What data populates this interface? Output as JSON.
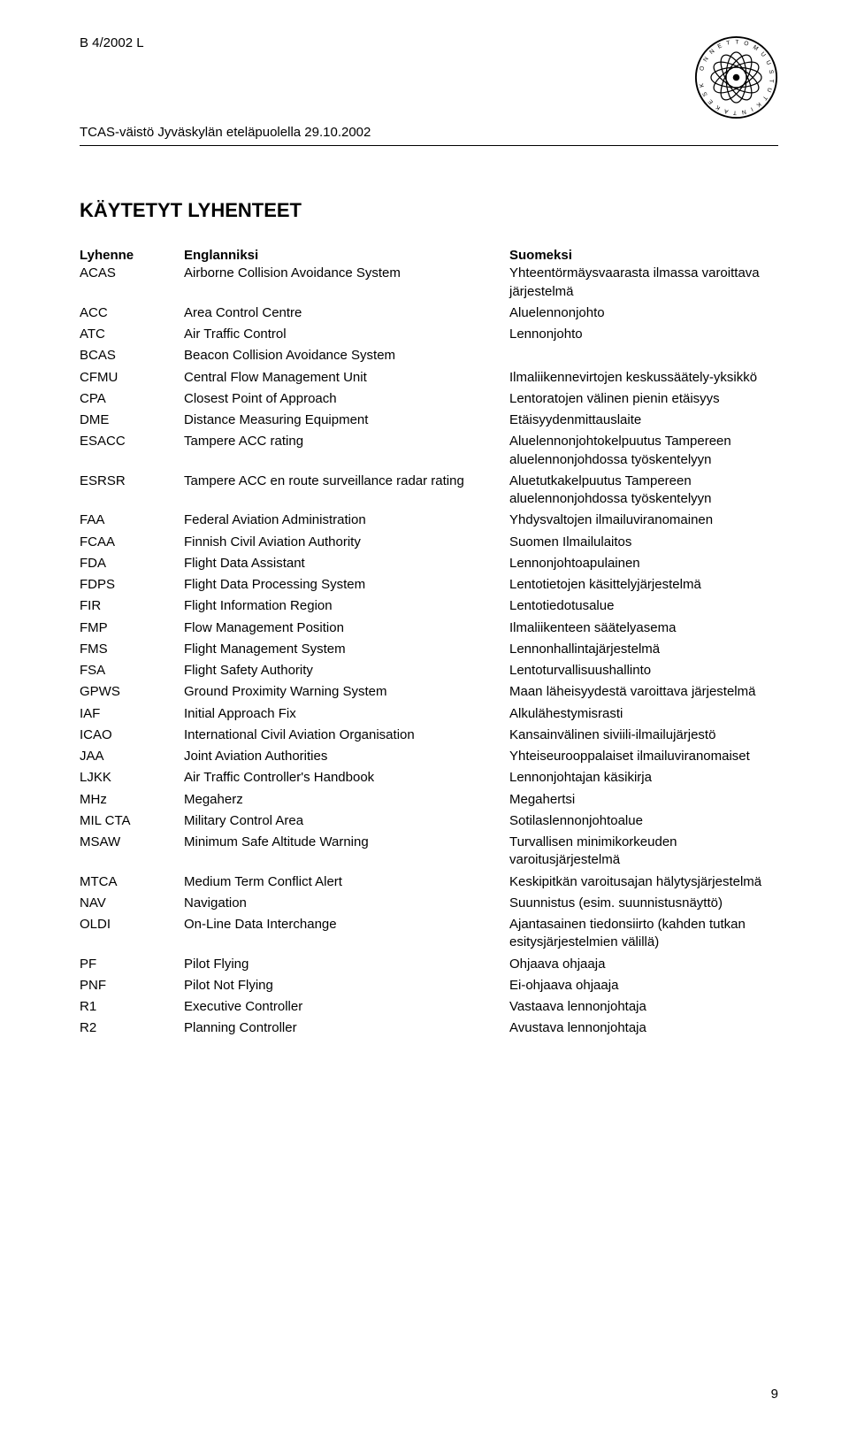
{
  "header": {
    "doc_id": "B 4/2002 L",
    "subtitle": "TCAS-väistö Jyväskylän eteläpuolella 29.10.2002"
  },
  "section_title": "KÄYTETYT LYHENTEET",
  "columns": {
    "abbr": "Lyhenne",
    "eng": "Englanniksi",
    "fin": "Suomeksi"
  },
  "rows": [
    {
      "a": "ACAS",
      "e": "Airborne Collision Avoidance System",
      "f": "Yhteentörmäysvaarasta ilmassa varoittava järjestelmä"
    },
    {
      "a": "ACC",
      "e": "Area Control Centre",
      "f": "Aluelennonjohto"
    },
    {
      "a": "ATC",
      "e": "Air Traffic Control",
      "f": "Lennonjohto"
    },
    {
      "a": "BCAS",
      "e": "Beacon Collision Avoidance System",
      "f": ""
    },
    {
      "a": "CFMU",
      "e": "Central Flow Management Unit",
      "f": "Ilmaliikennevirtojen keskussäätely-yksikkö"
    },
    {
      "a": "CPA",
      "e": "Closest Point of Approach",
      "f": "Lentoratojen välinen pienin etäisyys"
    },
    {
      "a": "DME",
      "e": "Distance Measuring Equipment",
      "f": "Etäisyydenmittauslaite"
    },
    {
      "a": "ESACC",
      "e": "Tampere ACC rating",
      "f": "Aluelennonjohtokelpuutus Tampereen aluelennonjohdossa työskentelyyn"
    },
    {
      "a": "ESRSR",
      "e": "Tampere ACC en route surveillance radar rating",
      "f": "Aluetutkakelpuutus Tampereen aluelennonjohdossa työskentelyyn"
    },
    {
      "a": "FAA",
      "e": "Federal Aviation Administration",
      "f": "Yhdysvaltojen ilmailuviranomainen"
    },
    {
      "a": "FCAA",
      "e": "Finnish Civil Aviation Authority",
      "f": "Suomen Ilmailulaitos"
    },
    {
      "a": "FDA",
      "e": "Flight Data Assistant",
      "f": "Lennonjohtoapulainen"
    },
    {
      "a": "FDPS",
      "e": "Flight Data Processing System",
      "f": "Lentotietojen käsittelyjärjestelmä"
    },
    {
      "a": "FIR",
      "e": "Flight Information Region",
      "f": "Lentotiedotusalue"
    },
    {
      "a": "FMP",
      "e": "Flow Management Position",
      "f": "Ilmaliikenteen säätelyasema"
    },
    {
      "a": "FMS",
      "e": "Flight Management System",
      "f": "Lennonhallintajärjestelmä"
    },
    {
      "a": "FSA",
      "e": "Flight Safety Authority",
      "f": "Lentoturvallisuushallinto"
    },
    {
      "a": "GPWS",
      "e": "Ground Proximity Warning System",
      "f": "Maan läheisyydestä varoittava järjestelmä"
    },
    {
      "a": "IAF",
      "e": "Initial Approach Fix",
      "f": "Alkulähestymisrasti"
    },
    {
      "a": "ICAO",
      "e": "International Civil Aviation Organisation",
      "f": "Kansainvälinen siviili-ilmailujärjestö"
    },
    {
      "a": "JAA",
      "e": "Joint Aviation Authorities",
      "f": "Yhteiseurooppalaiset ilmailuviranomaiset"
    },
    {
      "a": "LJKK",
      "e": "Air Traffic Controller's Handbook",
      "f": "Lennonjohtajan käsikirja"
    },
    {
      "a": "MHz",
      "e": "Megaherz",
      "f": "Megahertsi"
    },
    {
      "a": "MIL CTA",
      "e": "Military Control Area",
      "f": "Sotilaslennonjohtoalue"
    },
    {
      "a": "MSAW",
      "e": "Minimum Safe Altitude Warning",
      "f": "Turvallisen minimikorkeuden varoitusjärjestelmä"
    },
    {
      "a": "MTCA",
      "e": "Medium Term Conflict Alert",
      "f": "Keskipitkän varoitusajan hälytysjärjestelmä"
    },
    {
      "a": "NAV",
      "e": "Navigation",
      "f": "Suunnistus (esim. suunnistusnäyttö)"
    },
    {
      "a": "OLDI",
      "e": "On-Line Data Interchange",
      "f": "Ajantasainen tiedonsiirto (kahden tutkan esitysjärjestelmien välillä)"
    },
    {
      "a": "PF",
      "e": "Pilot Flying",
      "f": "Ohjaava ohjaaja"
    },
    {
      "a": "PNF",
      "e": "Pilot Not Flying",
      "f": "Ei-ohjaava ohjaaja"
    },
    {
      "a": "R1",
      "e": "Executive Controller",
      "f": "Vastaava lennonjohtaja"
    },
    {
      "a": "R2",
      "e": "Planning Controller",
      "f": "Avustava lennonjohtaja"
    }
  ],
  "page_number": "9"
}
